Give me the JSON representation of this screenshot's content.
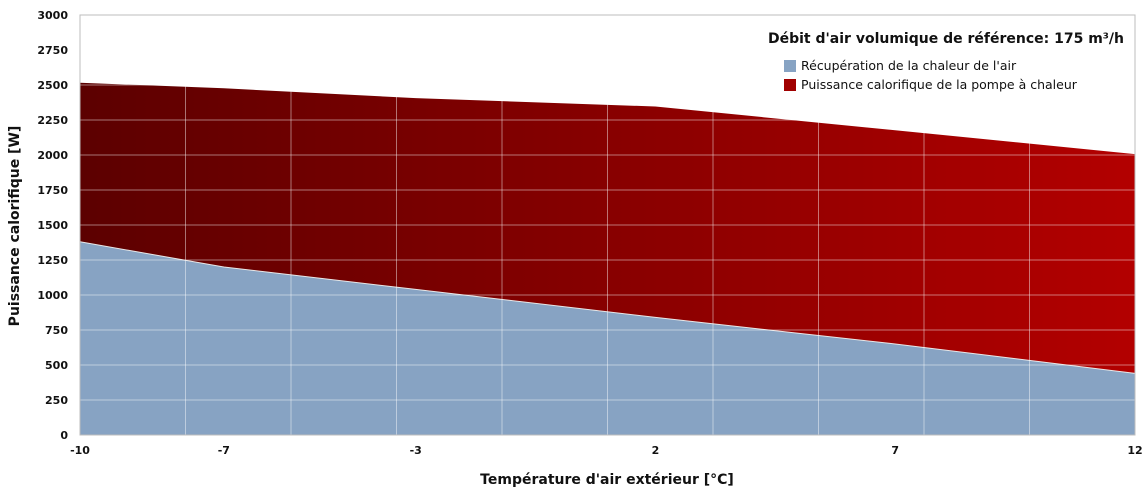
{
  "chart_data": {
    "type": "area",
    "stacked": true,
    "xlabel": "Température d'air extérieur [°C]",
    "ylabel": "Puissance calorifique [W]",
    "ylim": [
      0,
      3000
    ],
    "xlim": [
      -10,
      12
    ],
    "x_ticks": [
      -10,
      -7,
      -3,
      2,
      7,
      12
    ],
    "y_ticks": [
      0,
      250,
      500,
      750,
      1000,
      1250,
      1500,
      1750,
      2000,
      2250,
      2500,
      2750,
      3000
    ],
    "grid": true,
    "legend": {
      "title": "Débit d'air volumique de référence: 175 m³/h",
      "position": "top-right"
    },
    "x": [
      -10,
      -7,
      -3,
      2,
      7,
      12
    ],
    "series": [
      {
        "name": "Récupération de la chaleur de l'air",
        "color": "#87a3c3",
        "values": [
          1380,
          1200,
          1040,
          840,
          650,
          440
        ]
      },
      {
        "name": "Puissance calorifique de la pompe à chaleur",
        "color": "#a00000",
        "total_values": [
          2520,
          2480,
          2410,
          2350,
          2180,
          2010
        ]
      }
    ]
  }
}
